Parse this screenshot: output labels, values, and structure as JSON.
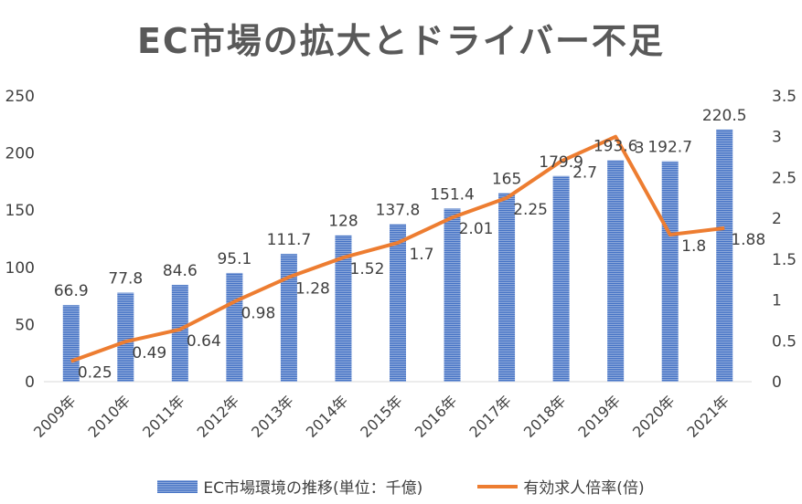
{
  "chart_data": {
    "type": "bar",
    "title": "EC市場の拡大とドライバー不足",
    "categories": [
      "2009年",
      "2010年",
      "2011年",
      "2012年",
      "2013年",
      "2014年",
      "2015年",
      "2016年",
      "2017年",
      "2018年",
      "2019年",
      "2020年",
      "2021年"
    ],
    "series": [
      {
        "name": "EC市場環境の推移(単位：千億)",
        "type": "bar",
        "axis": "left",
        "color": "#4472C4",
        "values": [
          66.9,
          77.8,
          84.6,
          95.1,
          111.7,
          128,
          137.8,
          151.4,
          165,
          179.9,
          193.6,
          192.7,
          220.5
        ]
      },
      {
        "name": "有効求人倍率(倍)",
        "type": "line",
        "axis": "right",
        "color": "#ED7D31",
        "values": [
          0.25,
          0.49,
          0.64,
          0.98,
          1.28,
          1.52,
          1.7,
          2.01,
          2.25,
          2.7,
          3,
          1.8,
          1.88
        ]
      }
    ],
    "y_left": {
      "min": 0,
      "max": 250,
      "ticks": [
        "0",
        "50",
        "100",
        "150",
        "200",
        "250"
      ]
    },
    "y_right": {
      "min": 0,
      "max": 3.5,
      "ticks": [
        "0",
        "0.5",
        "1",
        "1.5",
        "2",
        "2.5",
        "3",
        "3.5"
      ]
    },
    "grid": false,
    "legend": "bottom"
  }
}
